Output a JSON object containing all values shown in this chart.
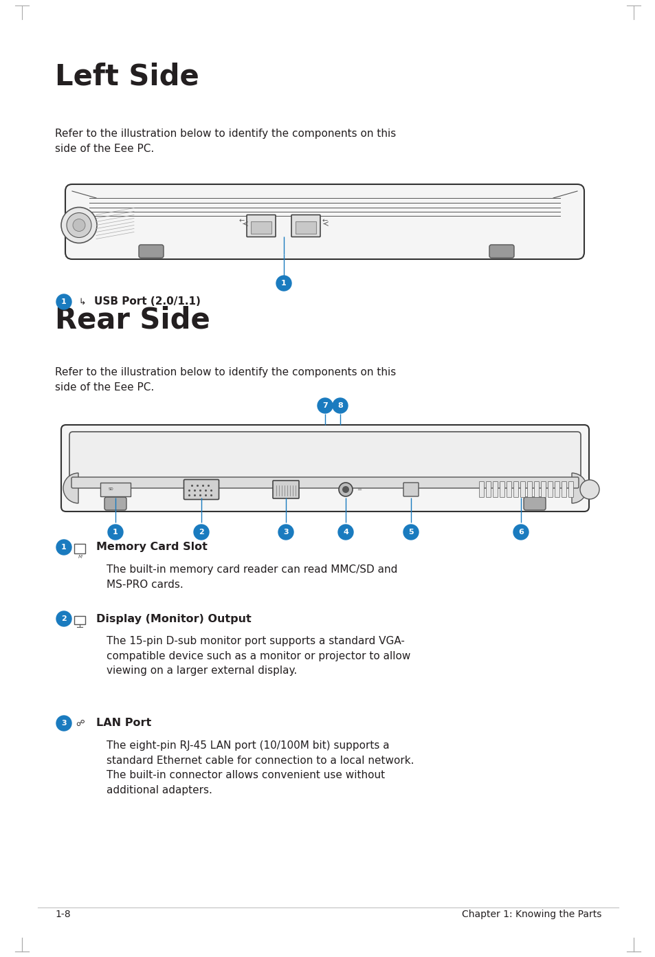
{
  "page_bg": "#ffffff",
  "title_left": "Left Side",
  "title_rear": "Rear Side",
  "subtitle_text": "Refer to the illustration below to identify the components on this\nside of the Eee PC.",
  "usb_label": "USB Port (2.0/1.1)",
  "item1_title": "Memory Card Slot",
  "item1_body": "The built-in memory card reader can read MMC/SD and\nMS-PRO cards.",
  "item2_title": "Display (Monitor) Output",
  "item2_body": "The 15-pin D-sub monitor port supports a standard VGA-\ncompatible device such as a monitor or projector to allow\nviewing on a larger external display.",
  "item3_title": "LAN Port",
  "item3_body": "The eight-pin RJ-45 LAN port (10/100M bit) supports a\nstandard Ethernet cable for connection to a local network.\nThe built-in connector allows convenient use without\nadditional adapters.",
  "footer_left": "1-8",
  "footer_right": "Chapter 1: Knowing the Parts",
  "blue_color": "#1a7bbf",
  "text_color": "#231f20",
  "light_gray": "#f2f2f2",
  "mid_gray": "#d8d8d8",
  "dark_gray": "#444444",
  "border_gray": "#cccccc"
}
